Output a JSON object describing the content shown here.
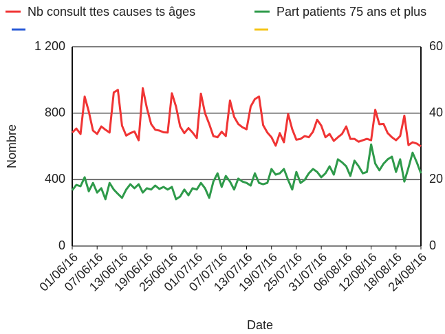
{
  "chart_data": {
    "type": "line",
    "x_label": "Date",
    "y_label": "Nombre",
    "categories": [
      "01/06/16",
      null,
      null,
      null,
      null,
      null,
      "07/06/16",
      null,
      null,
      null,
      null,
      null,
      "13/06/16",
      null,
      null,
      null,
      null,
      null,
      "19/06/16",
      null,
      null,
      null,
      null,
      null,
      "25/06/16",
      null,
      null,
      null,
      null,
      null,
      "01/07/16",
      null,
      null,
      null,
      null,
      null,
      "07/07/16",
      null,
      null,
      null,
      null,
      null,
      "13/07/16",
      null,
      null,
      null,
      null,
      null,
      "19/07/16",
      null,
      null,
      null,
      null,
      null,
      "25/07/16",
      null,
      null,
      null,
      null,
      null,
      "31/07/16",
      null,
      null,
      null,
      null,
      null,
      "06/08/16",
      null,
      null,
      null,
      null,
      null,
      "12/08/16",
      null,
      null,
      null,
      null,
      null,
      "18/08/16",
      null,
      null,
      null,
      null,
      null,
      "24/08/16"
    ],
    "series": [
      {
        "name": "Nb consult ttes causes ts âges",
        "color": "#f03434",
        "axis": "y",
        "values": [
          683,
          707,
          675,
          900,
          810,
          695,
          675,
          720,
          700,
          683,
          925,
          940,
          725,
          665,
          680,
          690,
          637,
          950,
          830,
          735,
          700,
          695,
          685,
          683,
          920,
          840,
          720,
          680,
          710,
          683,
          650,
          918,
          800,
          735,
          662,
          655,
          688,
          662,
          877,
          778,
          735,
          715,
          703,
          840,
          885,
          900,
          728,
          683,
          655,
          604,
          680,
          625,
          795,
          703,
          640,
          645,
          662,
          655,
          688,
          760,
          725,
          655,
          675,
          633,
          655,
          675,
          720,
          645,
          645,
          628,
          637,
          645,
          637,
          820,
          733,
          735,
          680,
          655,
          637,
          662,
          785,
          608,
          625,
          617,
          600
        ]
      },
      {
        "name": "Part patients 75 ans et plus",
        "color": "#2e9a4a",
        "axis": "y2",
        "values": [
          16.8,
          18.4,
          18,
          20.7,
          16.5,
          19,
          16.1,
          17.4,
          14.1,
          19,
          17,
          15.7,
          14.5,
          17,
          18.6,
          17.4,
          18.6,
          16.1,
          17.4,
          17,
          18.2,
          17.2,
          17.8,
          17,
          17.8,
          14.1,
          14.9,
          17,
          15.3,
          17.4,
          17,
          19,
          17.4,
          14.5,
          19.4,
          21.9,
          17.8,
          21.1,
          19.4,
          17,
          20.3,
          19.4,
          19,
          18.2,
          21.9,
          19,
          18.6,
          19,
          23.2,
          21.5,
          21.9,
          23.2,
          19.9,
          17,
          22.3,
          19,
          19.9,
          21.9,
          23.2,
          22.3,
          20.7,
          21.9,
          24,
          21.5,
          26.1,
          25.2,
          24,
          21.1,
          25.7,
          24,
          21.9,
          22.3,
          30.6,
          24.8,
          22.8,
          24.8,
          26.1,
          26.9,
          22.3,
          26.1,
          19.4,
          23.6,
          28.1,
          25.2,
          21.9
        ]
      }
    ],
    "ylim": [
      0,
      1200
    ],
    "yticks": [
      0,
      400,
      800,
      {
        "value": 1200,
        "label": "1 200"
      }
    ],
    "y2lim": [
      0,
      60
    ],
    "y2ticks": [
      0,
      20,
      40,
      60
    ],
    "grid": true
  }
}
